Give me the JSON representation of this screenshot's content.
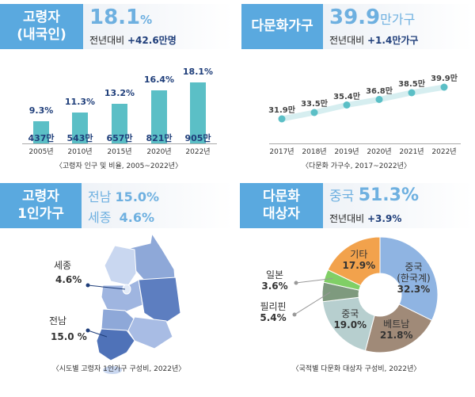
{
  "panel1": {
    "header": "고령자\n(내국인)",
    "value": "18.1",
    "unit": "%",
    "delta_label": "전년대비",
    "delta": "+42.6만명",
    "caption": "〈고령자 인구 및 비율, 2005~2022년〉"
  },
  "panel2": {
    "header": "다문화가구",
    "value": "39.9",
    "unit": "만가구",
    "delta_label": "전년대비",
    "delta": "+1.4만가구",
    "caption": "〈다문화 가구수, 2017~2022년〉"
  },
  "panel3": {
    "header": "고령자\n1인가구",
    "line1_region": "전남",
    "line1_value": "15.0%",
    "line2_region": "세종",
    "line2_value": "4.6%",
    "callouts": [
      {
        "region": "세종",
        "value": "4.6%"
      },
      {
        "region": "전남",
        "value": "15.0 %"
      }
    ],
    "caption": "〈시도별 고령자 1인가구 구성비, 2022년〉"
  },
  "panel4": {
    "header": "다문화\n대상자",
    "highlight_label": "중국",
    "highlight_value": "51.3%",
    "delta_label": "전년대비",
    "delta": "+3.9%",
    "caption": "〈국적별 다문화 대상자 구성비, 2022년〉"
  },
  "chart_data": [
    {
      "type": "bar",
      "categories": [
        "2005년",
        "2010년",
        "2015년",
        "2020년",
        "2022년"
      ],
      "series": [
        {
          "values": [
            9.3,
            11.3,
            13.2,
            16.4,
            18.1
          ],
          "labels": [
            "9.3%",
            "11.3%",
            "13.2%",
            "16.4%",
            "18.1%"
          ]
        },
        {
          "values": [
            437,
            543,
            657,
            821,
            905
          ],
          "labels": [
            "437만",
            "543만",
            "657만",
            "821만",
            "905만"
          ]
        }
      ],
      "color": "#5bbfc6"
    },
    {
      "type": "line",
      "categories": [
        "2017년",
        "2018년",
        "2019년",
        "2020년",
        "2021년",
        "2022년"
      ],
      "values": [
        31.9,
        33.5,
        35.4,
        36.8,
        38.5,
        39.9
      ],
      "labels": [
        "31.9만",
        "33.5만",
        "35.4만",
        "36.8만",
        "38.5만",
        "39.9만"
      ],
      "color": "#5bbfc6"
    },
    {
      "type": "pie",
      "donut": true,
      "slices": [
        {
          "label": "중국\n(한국계)",
          "value": 32.3,
          "text": "32.3%",
          "color": "#8fb4e2"
        },
        {
          "label": "베트남",
          "value": 21.8,
          "text": "21.8%",
          "color": "#a08a78"
        },
        {
          "label": "중국",
          "value": 19.0,
          "text": "19.0%",
          "color": "#b7cfcf"
        },
        {
          "label": "필리핀",
          "value": 5.4,
          "text": "5.4%",
          "color": "#7e9a7e"
        },
        {
          "label": "일본",
          "value": 3.6,
          "text": "3.6%",
          "color": "#80cf66"
        },
        {
          "label": "기타",
          "value": 17.9,
          "text": "17.9%",
          "color": "#f2a24c"
        }
      ]
    }
  ]
}
